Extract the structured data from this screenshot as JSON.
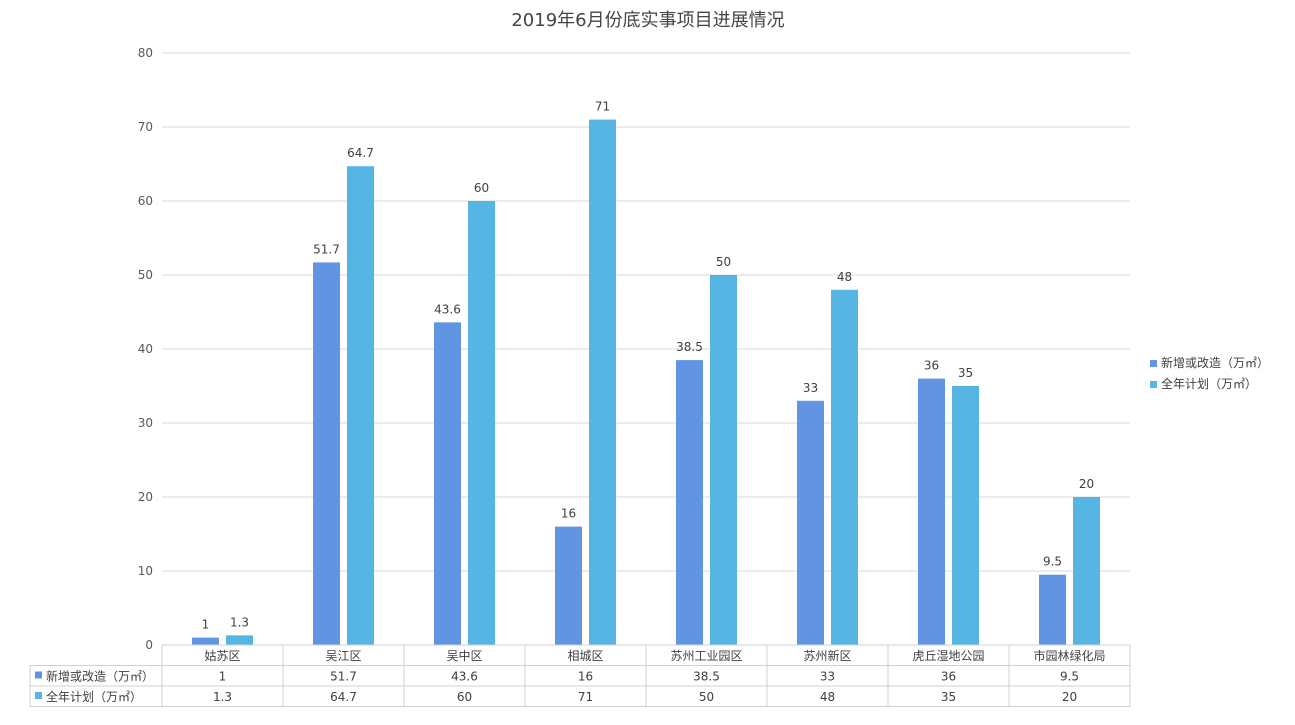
{
  "chart_data": {
    "type": "bar",
    "title": "2019年6月份底实事项目进展情况",
    "categories": [
      "姑苏区",
      "吴江区",
      "吴中区",
      "相城区",
      "苏州工业园区",
      "苏州新区",
      "虎丘湿地公园",
      "市园林绿化局"
    ],
    "series": [
      {
        "name": "新增或改造（万㎡）",
        "color": "#6195e3",
        "values": [
          1,
          51.7,
          43.6,
          16,
          38.5,
          33,
          36,
          9.5
        ]
      },
      {
        "name": "全年计划（万㎡）",
        "color": "#56b5e3",
        "values": [
          1.3,
          64.7,
          60,
          71,
          50,
          48,
          35,
          20
        ]
      }
    ],
    "value_labels": [
      [
        "1",
        "51.7",
        "43.6",
        "16",
        "38.5",
        "33",
        "36",
        "9.5"
      ],
      [
        "1.3",
        "64.7",
        "60",
        "71",
        "50",
        "48",
        "35",
        "20"
      ]
    ],
    "ylim": [
      0,
      80
    ],
    "yticks": [
      0,
      10,
      20,
      30,
      40,
      50,
      60,
      70,
      80
    ],
    "grid": true,
    "legend_position": "right",
    "data_table": true
  }
}
